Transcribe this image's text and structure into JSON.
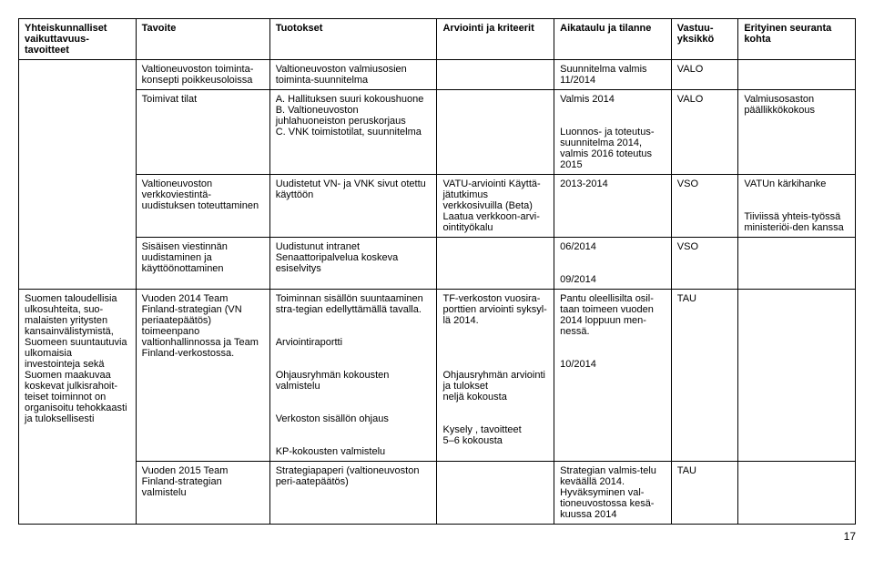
{
  "headers": {
    "c1": "Yhteiskunnalliset vaikuttavuus-\ntavoitteet",
    "c2": "Tavoite",
    "c3": "Tuotokset",
    "c4": "Arviointi ja kriteerit",
    "c5": "Aikataulu ja tilanne",
    "c6": "Vastuu-\nyksikkö",
    "c7": "Erityinen seuranta kohta"
  },
  "rows": [
    {
      "c2": "Valtioneuvoston toiminta-konsepti poikkeusoloissa",
      "c3": "Valtioneuvoston valmiusosien toiminta-suunnitelma",
      "c4": "",
      "c5": "Suunnitelma valmis 11/2014",
      "c6": "VALO",
      "c7": ""
    },
    {
      "c2": "Toimivat tilat",
      "c3": "A. Hallituksen suuri kokoushuone\nB. Valtioneuvoston juhlahuoneiston peruskorjaus\nC. VNK toimistotilat, suunnitelma",
      "c4": "",
      "c5": "Valmis 2014\n\nLuonnos- ja toteutus-suunnitelma 2014, valmis 2016 toteutus 2015",
      "c6": "VALO",
      "c7": "Valmiusosaston päällikkökokous"
    },
    {
      "c2": "Valtioneuvoston verkkoviestintä-uudistuksen toteuttaminen",
      "c3": "Uudistetut VN- ja VNK sivut otettu käyttöön",
      "c4": "VATU-arviointi  Käyttä-jätutkimus verkkosivuilla (Beta)\nLaatua verkkoon-arvi-ointityökalu",
      "c5": "2013-2014",
      "c6": "VSO",
      "c7": "VATUn kärkihanke\n\nTiiviissä yhteis-työssä ministeriöi-den kanssa"
    },
    {
      "c2": "Sisäisen viestinnän uudistaminen ja käyttöönottaminen",
      "c3": "Uudistunut intranet\nSenaattoripalvelua koskeva esiselvitys",
      "c4": "",
      "c5": "06/2014\n\n09/2014",
      "c6": "VSO",
      "c7": ""
    },
    {
      "c1": "Suomen taloudellisia ulkosuhteita, suo-malaisten yritysten kansainvälistymistä, Suomeen suuntautuvia ulkomaisia investointeja sekä Suomen maakuvaa koskevat julkisrahoit-teiset toiminnot on organisoitu tehokkaasti ja tuloksellisesti",
      "c2": "Vuoden 2014 Team Finland-strategian (VN periaatepäätös) toimeenpano valtionhallinnossa ja Team Finland-verkostossa.",
      "c3": "Toiminnan sisällön suuntaaminen stra-tegian edellyttämällä tavalla.\n\nArviointiraportti\n\nOhjausryhmän kokousten valmistelu\n\nVerkoston sisällön ohjaus\n\nKP-kokousten valmistelu",
      "c4": "TF-verkoston vuosira-porttien arviointi syksyl-lä 2014.\n\n\nOhjausryhmän arviointi ja tulokset\nneljä kokousta\n\nKysely , tavoitteet\n5–6 kokousta",
      "c5": "Pantu oleellisilta osil-taan toimeen vuoden 2014 loppuun men-nessä.\n\n10/2014",
      "c6": "TAU",
      "c7": ""
    },
    {
      "c2": "Vuoden 2015 Team Finland-strategian valmistelu",
      "c3": "Strategiapaperi (valtioneuvoston peri-aatepäätös)",
      "c4": "",
      "c5": "Strategian valmis-telu keväällä 2014. Hyväksyminen val-tioneuvostossa kesä-kuussa 2014",
      "c6": "TAU",
      "c7": ""
    }
  ],
  "pageNumber": "17"
}
